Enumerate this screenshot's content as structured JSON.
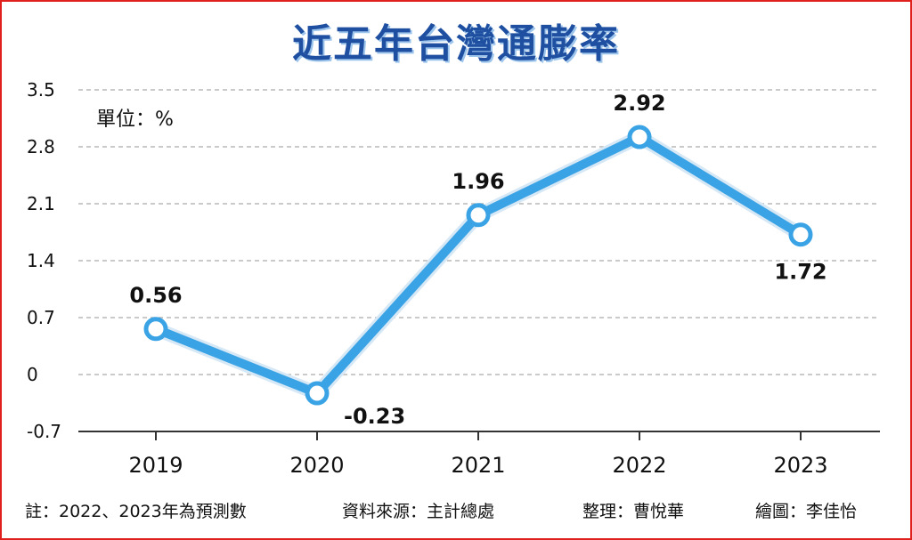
{
  "chart_data": {
    "type": "line",
    "title": "近五年台灣通膨率",
    "unit_label": "單位：%",
    "categories": [
      "2019",
      "2020",
      "2021",
      "2022",
      "2023"
    ],
    "series": [
      {
        "values": [
          0.56,
          -0.23,
          1.96,
          2.92,
          1.72
        ],
        "color": "#3aa3e5"
      }
    ],
    "data_labels": [
      "0.56",
      "-0.23",
      "1.96",
      "2.92",
      "1.72"
    ],
    "yticks": [
      "3.5",
      "2.8",
      "2.1",
      "1.4",
      "0.7",
      "0",
      "-0.7"
    ],
    "ylim": [
      -0.7,
      3.5
    ],
    "grid": true
  },
  "footer": {
    "note": "註：2022、2023年為預測數",
    "source": "資料來源：主計總處",
    "editor": "整理：曹悅華",
    "illustrator": "繪圖：李佳怡"
  },
  "colors": {
    "border": "#e0201c",
    "title": "#1f4fa0",
    "line": "#3aa3e5",
    "grid": "#b8b8b8"
  }
}
